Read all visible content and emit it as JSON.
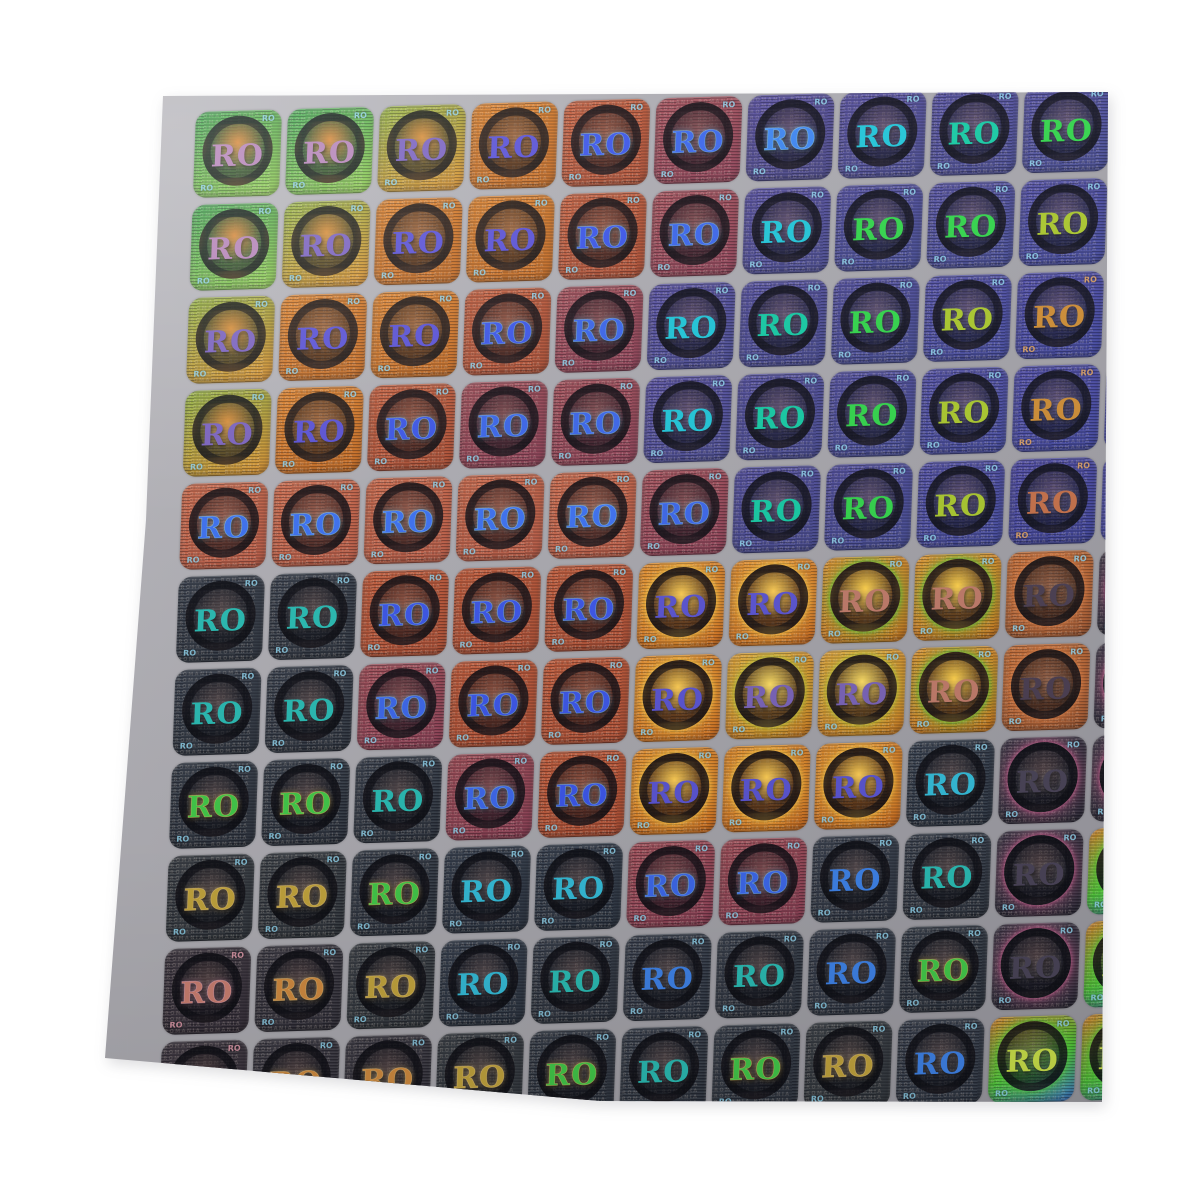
{
  "scene": {
    "background_color": "#ffffff",
    "sheet_base_color": "#a9a8ae",
    "sheet_light_color": "#bfbec3",
    "sheet_dark_color": "#949399"
  },
  "sticker": {
    "label": "RO",
    "corner_label": "RO",
    "microtext": "ROMANIA"
  },
  "grid": {
    "rows": 11,
    "cols": 11
  },
  "palette": {
    "g": {
      "b1": "#3da24b",
      "b2": "#8fcb4e",
      "t": "#b583b8",
      "flare": "#d98a3c"
    },
    "go": {
      "b1": "#8faf3c",
      "b2": "#d98e2c",
      "t": "#7a62c0",
      "flare": "#d9903c"
    },
    "o": {
      "b1": "#d97d27",
      "b2": "#c2671f",
      "t": "#5951d6"
    },
    "r": {
      "b1": "#c05a39",
      "b2": "#ad4e33",
      "t": "#3d57e8",
      "rim": "#8fd8ff"
    },
    "m": {
      "b1": "#a04e58",
      "b2": "#8c4055",
      "t": "#3e68ea",
      "rim": "#8fd8ff"
    },
    "s": {
      "b1": "#c9684a",
      "b2": "#b85a44",
      "t": "#3f73f2",
      "rim": "#9fe8ff"
    },
    "pb": {
      "b1": "#564d9d",
      "b2": "#494788",
      "t": "#3f86f0",
      "rim": "#9fe8ff"
    },
    "pc": {
      "b1": "#544d9d",
      "b2": "#484a90",
      "t": "#22c5d8"
    },
    "pt": {
      "b1": "#514d9c",
      "b2": "#45488e",
      "t": "#17c9a4"
    },
    "pg": {
      "b1": "#4f4c9c",
      "b2": "#444a92",
      "t": "#33d44c"
    },
    "py": {
      "b1": "#4d4ba0",
      "b2": "#42489a",
      "t": "#aac72f"
    },
    "po": {
      "b1": "#4b49a2",
      "b2": "#3f459c",
      "t": "#cd8d36",
      "corner": "#e8a860"
    },
    "pr": {
      "b1": "#4a47a0",
      "b2": "#3e4398",
      "t": "#c4704a",
      "corner": "#e8a860"
    },
    "ob": {
      "b1": "#e08a2c",
      "b2": "#cc6c1f",
      "t": "#5b55d2",
      "glow": "#ffd44e",
      "flare": "#ffcf56"
    },
    "og": {
      "b1": "#e1912f",
      "b2": "#c8761f",
      "t": "#bf7b6a",
      "glow": "#4fd13a",
      "flare": "#ffd24e"
    },
    "oy": {
      "b1": "#e3a33a",
      "b2": "#cd7d22",
      "t": "#7a64b8",
      "glow": "#b8d43c",
      "flare": "#ffe066"
    },
    "od": {
      "b1": "#c06b35",
      "b2": "#9c5530",
      "t": "#4b3f52",
      "glow": "#e08348"
    },
    "dt": {
      "b1": "#3b424e",
      "b2": "#2e343e",
      "t": "#2bbcb4"
    },
    "db": {
      "b1": "#3c4350",
      "b2": "#303743",
      "t": "#3f83e8"
    },
    "dg": {
      "b1": "#3a414c",
      "b2": "#2d333d",
      "t": "#43c94a",
      "rim": "#ffcf6e"
    },
    "dy": {
      "b1": "#3e4349",
      "b2": "#31363c",
      "t": "#c3a53e",
      "rim": "#ffd98a"
    },
    "do": {
      "b1": "#413f48",
      "b2": "#33313a",
      "t": "#d18c41",
      "rim": "#ffd98a"
    },
    "ds": {
      "b1": "#443d46",
      "b2": "#362f39",
      "t": "#cb8072",
      "rim": "#ffb9d0",
      "corner": "#e8a0b0"
    },
    "dc": {
      "b1": "#394250",
      "b2": "#2c3440",
      "t": "#35bcd8"
    },
    "dk": {
      "b1": "#3a3846",
      "b2": "#2c2b38",
      "t": "#4a4458",
      "glow": "#e0689c"
    },
    "rw": {
      "b1": "#e0832c",
      "bmid": "#4fc838",
      "b2": "#3f78dd",
      "t": "#cbe24a",
      "glow": "#56d23c"
    }
  },
  "tile_map": [
    [
      "g",
      "g",
      "go",
      "o",
      "r",
      "m",
      "pb",
      "pc",
      "pt",
      "pg",
      "pg"
    ],
    [
      "g",
      "go",
      "o",
      "o",
      "r",
      "m",
      "pc",
      "pg",
      "pg",
      "py",
      "po"
    ],
    [
      "go",
      "o",
      "o",
      "r",
      "m",
      "pc",
      "pt",
      "pg",
      "py",
      "po",
      "po"
    ],
    [
      "go",
      "o",
      "r",
      "m",
      "m",
      "pc",
      "pt",
      "pg",
      "py",
      "po",
      "po"
    ],
    [
      "s",
      "s",
      "s",
      "s",
      "s",
      "m",
      "pt",
      "pg",
      "py",
      "pr",
      "po"
    ],
    [
      "dt",
      "dt",
      "r",
      "r",
      "r",
      "ob",
      "ob",
      "og",
      "og",
      "od",
      "dk"
    ],
    [
      "dt",
      "dt",
      "m",
      "r",
      "r",
      "ob",
      "oy",
      "oy",
      "og",
      "od",
      "dk"
    ],
    [
      "dg",
      "dg",
      "dt",
      "m",
      "r",
      "ob",
      "ob",
      "ob",
      "dc",
      "dk",
      "dk"
    ],
    [
      "dy",
      "dy",
      "dg",
      "dc",
      "dc",
      "m",
      "m",
      "db",
      "dt",
      "dk",
      "rw"
    ],
    [
      "ds",
      "do",
      "dy",
      "dc",
      "dt",
      "db",
      "dt",
      "db",
      "dg",
      "dk",
      "rw"
    ],
    [
      "ds",
      "do",
      "do",
      "dy",
      "dg",
      "dt",
      "dg",
      "dy",
      "db",
      "rw",
      "rw"
    ]
  ]
}
